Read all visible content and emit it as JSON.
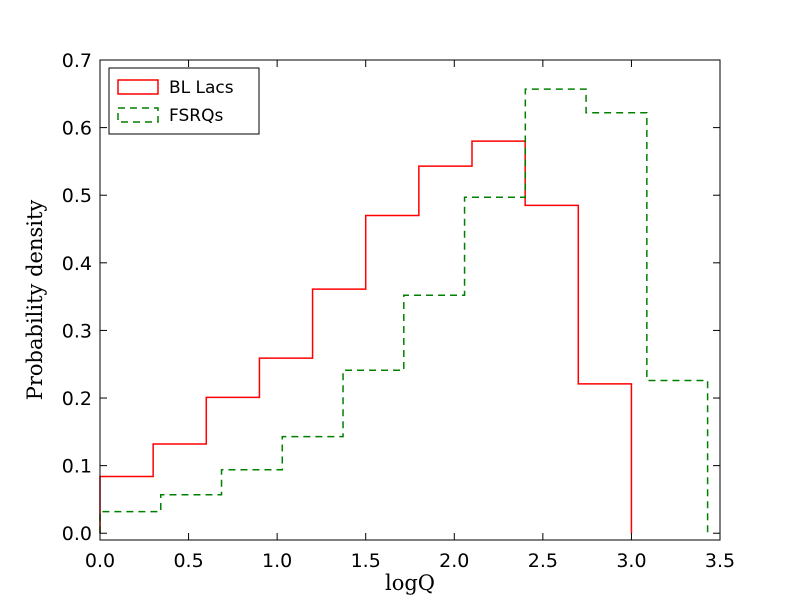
{
  "chart_data": {
    "type": "step",
    "xlabel": "logQ",
    "ylabel": "Probability density",
    "xlim": [
      0.0,
      3.5
    ],
    "ylim": [
      -0.01,
      0.7
    ],
    "xticks": [
      "0.0",
      "0.5",
      "1.0",
      "1.5",
      "2.0",
      "2.5",
      "3.0",
      "3.5"
    ],
    "yticks": [
      "0.0",
      "0.1",
      "0.2",
      "0.3",
      "0.4",
      "0.5",
      "0.6",
      "0.7"
    ],
    "grid": false,
    "legend": "top-left",
    "series": [
      {
        "name": "BL Lacs",
        "color": "#ff0000",
        "linestyle": "solid",
        "bin_edges": [
          0.0,
          0.3,
          0.6,
          0.9,
          1.2,
          1.5,
          1.8,
          2.1,
          2.4,
          2.7,
          3.0
        ],
        "values": [
          0.084,
          0.132,
          0.201,
          0.259,
          0.361,
          0.47,
          0.543,
          0.58,
          0.485,
          0.221
        ]
      },
      {
        "name": "FSRQs",
        "color": "#008000",
        "linestyle": "dashed",
        "bin_edges": [
          0.0,
          0.343,
          0.686,
          1.029,
          1.372,
          1.715,
          2.058,
          2.401,
          2.744,
          3.087,
          3.43
        ],
        "values": [
          0.032,
          0.057,
          0.094,
          0.143,
          0.241,
          0.352,
          0.497,
          0.657,
          0.622,
          0.226
        ]
      }
    ]
  }
}
